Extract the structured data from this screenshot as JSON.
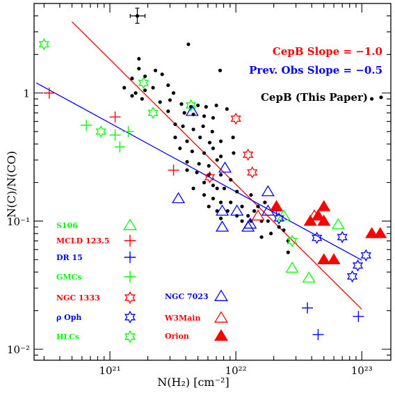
{
  "chart_data": {
    "type": "scatter",
    "title": "",
    "xlabel": "N(H₂) [cm⁻²]",
    "ylabel": "N(C)/N(CO)",
    "xscale": "log",
    "yscale": "log",
    "xlim": [
      2.5e+20,
      1.7e+23
    ],
    "ylim": [
      0.0082,
      5.0
    ],
    "x_tick_labels": [
      "10²¹",
      "10²²",
      "10²³"
    ],
    "y_tick_labels": [
      "10⁻²",
      "10⁻¹",
      "1"
    ],
    "grid": false,
    "annotations": [
      {
        "text": "CepB Slope = −1.0",
        "color": "#ff0000"
      },
      {
        "text": "Prev. Obs Slope = −0.5",
        "color": "#0000ff"
      },
      {
        "text": "CepB (This Paper)",
        "color": "#000000"
      }
    ],
    "fit_lines": [
      {
        "name": "CepB Slope",
        "slope": -1.0,
        "color": "#ff0000",
        "points": [
          [
            5e+20,
            3.6
          ],
          [
            1e+23,
            0.0205
          ]
        ]
      },
      {
        "name": "Prev. Obs Slope",
        "slope": -0.5,
        "color": "#0000ff",
        "points": [
          [
            2.6e+20,
            1.2
          ],
          [
            1e+23,
            0.0495
          ]
        ]
      }
    ],
    "error_bar_point": {
      "x": 1.65e+21,
      "y": 4.0,
      "xerr": [
        1.45e+21,
        1.9e+21
      ],
      "yerr": [
        3.5,
        4.6
      ]
    },
    "series": [
      {
        "name": "CepB (This Paper)",
        "marker": "dot",
        "color": "#000000",
        "points": [
          [
            1.2e+23,
            0.9
          ],
          [
            4.2e+21,
            2.4
          ],
          [
            7.5e+21,
            1.5
          ],
          [
            1.7e+21,
            1.85
          ],
          [
            1.7e+21,
            1.55
          ],
          [
            1.9e+21,
            1.35
          ],
          [
            2.3e+21,
            1.5
          ],
          [
            2.6e+21,
            1.4
          ],
          [
            1.5e+21,
            1.3
          ],
          [
            1.3e+21,
            1.1
          ],
          [
            1.6e+21,
            1.0
          ],
          [
            1.9e+21,
            1.05
          ],
          [
            2.2e+21,
            1.1
          ],
          [
            2.9e+21,
            1.15
          ],
          [
            3.2e+21,
            1.0
          ],
          [
            1.5e+21,
            0.95
          ],
          [
            1.8e+21,
            0.9
          ],
          [
            2.5e+21,
            0.85
          ],
          [
            3e+21,
            0.88
          ],
          [
            3.7e+21,
            0.82
          ],
          [
            4.4e+21,
            0.78
          ],
          [
            5e+21,
            0.8
          ],
          [
            5.8e+21,
            0.78
          ],
          [
            7e+21,
            0.8
          ],
          [
            2.9e+21,
            0.72
          ],
          [
            3.9e+21,
            0.7
          ],
          [
            4.6e+21,
            0.68
          ],
          [
            5.6e+21,
            0.66
          ],
          [
            6.6e+21,
            0.64
          ],
          [
            8.5e+21,
            0.75
          ],
          [
            3.3e+21,
            0.57
          ],
          [
            3.8e+21,
            0.55
          ],
          [
            4.6e+21,
            0.52
          ],
          [
            5.5e+21,
            0.55
          ],
          [
            6.5e+21,
            0.5
          ],
          [
            3.3e+21,
            0.45
          ],
          [
            4.1e+21,
            0.42
          ],
          [
            5.2e+21,
            0.45
          ],
          [
            6.2e+21,
            0.41
          ],
          [
            7.6e+21,
            0.42
          ],
          [
            9.5e+21,
            0.45
          ],
          [
            3.6e+21,
            0.37
          ],
          [
            4.5e+21,
            0.35
          ],
          [
            5.6e+21,
            0.34
          ],
          [
            6.6e+21,
            0.37
          ],
          [
            7.6e+21,
            0.32
          ],
          [
            9.6e+21,
            0.34
          ],
          [
            4.1e+21,
            0.29
          ],
          [
            5.1e+21,
            0.28
          ],
          [
            6.1e+21,
            0.27
          ],
          [
            7.1e+21,
            0.3
          ],
          [
            4.1e+21,
            0.25
          ],
          [
            4.9e+21,
            0.24
          ],
          [
            6.1e+21,
            0.23
          ],
          [
            7.6e+21,
            0.23
          ],
          [
            9.1e+21,
            0.21
          ],
          [
            5.6e+21,
            0.2
          ],
          [
            6.6e+21,
            0.19
          ],
          [
            7.1e+21,
            0.18
          ],
          [
            8.1e+21,
            0.18
          ],
          [
            4.6e+21,
            0.18
          ],
          [
            1.02e+22,
            0.17
          ],
          [
            5.6e+21,
            0.16
          ],
          [
            6.6e+21,
            0.15
          ],
          [
            7.6e+21,
            0.14
          ],
          [
            9.1e+21,
            0.14
          ],
          [
            1.12e+22,
            0.13
          ],
          [
            1.5e+22,
            0.13
          ],
          [
            6.1e+21,
            0.13
          ],
          [
            7.1e+21,
            0.12
          ],
          [
            8.6e+21,
            0.12
          ],
          [
            1.02e+22,
            0.11
          ],
          [
            1.25e+22,
            0.11
          ],
          [
            1.4e+22,
            0.12
          ],
          [
            7.6e+21,
            0.105
          ],
          [
            1.12e+22,
            0.1
          ],
          [
            1.32e+22,
            0.1
          ],
          [
            1.6e+22,
            0.1
          ],
          [
            1.8e+22,
            0.1
          ],
          [
            2.2e+22,
            0.09
          ],
          [
            2.4e+22,
            0.085
          ],
          [
            2.6e+22,
            0.07
          ],
          [
            2.6e+22,
            0.057
          ],
          [
            1.6e+22,
            0.075
          ],
          [
            1.9e+22,
            0.08
          ],
          [
            1.32e+22,
            0.16
          ],
          [
            1.7e+22,
            0.14
          ]
        ]
      },
      {
        "name": "S106",
        "marker": "triangle-open",
        "color": "#00ff00",
        "points": [
          [
            2.8e+22,
            0.043
          ],
          [
            3.8e+22,
            0.036
          ],
          [
            6.5e+22,
            0.094
          ],
          [
            2.4e+22,
            0.11
          ]
        ]
      },
      {
        "name": "MCLD 123.5",
        "marker": "plus",
        "color": "#ff0000",
        "points": [
          [
            3.3e+20,
            1.0
          ],
          [
            1.1e+21,
            0.65
          ],
          [
            3.2e+21,
            0.25
          ]
        ]
      },
      {
        "name": "DR 15",
        "marker": "plus",
        "color": "#0000ff",
        "points": [
          [
            3.7e+22,
            0.021
          ],
          [
            4.5e+22,
            0.013
          ],
          [
            9.4e+22,
            0.018
          ],
          [
            2.1e+22,
            0.12
          ]
        ]
      },
      {
        "name": "GMCs",
        "marker": "plus",
        "color": "#00ff00",
        "points": [
          [
            6.5e+20,
            0.56
          ],
          [
            1.1e+21,
            0.47
          ],
          [
            1.2e+21,
            0.38
          ],
          [
            1.4e+21,
            0.5
          ]
        ]
      },
      {
        "name": "NGC 1333",
        "marker": "star-open",
        "color": "#ff0000",
        "points": [
          [
            1e+22,
            0.63
          ],
          [
            1.25e+22,
            0.33
          ],
          [
            1.35e+22,
            0.24
          ],
          [
            6.2e+21,
            0.22
          ]
        ]
      },
      {
        "name": "ρ Oph",
        "marker": "star-open",
        "color": "#0000ff",
        "points": [
          [
            4.4e+22,
            0.074
          ],
          [
            7e+22,
            0.075
          ],
          [
            8.4e+22,
            0.037
          ],
          [
            9.3e+22,
            0.045
          ],
          [
            1.08e+23,
            0.054
          ],
          [
            2.2e+22,
            0.105
          ]
        ]
      },
      {
        "name": "HLCs",
        "marker": "star-open",
        "color": "#00ff00",
        "points": [
          [
            3e+20,
            2.4
          ],
          [
            8.5e+20,
            0.5
          ],
          [
            1.85e+21,
            1.2
          ],
          [
            2.2e+21,
            0.7
          ],
          [
            4.4e+21,
            0.8
          ],
          [
            2.8e+22,
            0.07
          ]
        ]
      },
      {
        "name": "NGC 7023",
        "marker": "triangle-open",
        "color": "#0000ff",
        "points": [
          [
            4.5e+21,
            0.72
          ],
          [
            3.5e+21,
            0.15
          ],
          [
            8.2e+21,
            0.26
          ],
          [
            7.8e+21,
            0.12
          ],
          [
            7.8e+21,
            0.09
          ],
          [
            1.02e+22,
            0.12
          ],
          [
            1.3e+22,
            0.095
          ],
          [
            1.25e+22,
            0.09
          ],
          [
            1.8e+22,
            0.17
          ],
          [
            1.8e+22,
            0.12
          ]
        ]
      },
      {
        "name": "W3Main",
        "marker": "triangle-open",
        "color": "#ff0000",
        "points": [
          [
            4.2e+22,
            0.11
          ],
          [
            4.5e+22,
            0.11
          ],
          [
            1.5e+22,
            0.11
          ]
        ]
      },
      {
        "name": "Orion",
        "marker": "triangle-filled",
        "color": "#ff0000",
        "points": [
          [
            2.1e+22,
            0.13
          ],
          [
            3.9e+22,
            0.1
          ],
          [
            4.5e+22,
            0.11
          ],
          [
            5e+22,
            0.13
          ],
          [
            5e+22,
            0.1
          ],
          [
            5e+22,
            0.05
          ],
          [
            6e+22,
            0.05
          ],
          [
            1.2e+23,
            0.08
          ],
          [
            1.4e+23,
            0.08
          ]
        ]
      }
    ],
    "legend": [
      {
        "label": "S106",
        "color": "#00ff00",
        "marker": "triangle-open",
        "column": 1
      },
      {
        "label": "MCLD 123.5",
        "color": "#ff0000",
        "marker": "plus",
        "column": 1
      },
      {
        "label": "DR 15",
        "color": "#0000ff",
        "marker": "plus",
        "column": 1
      },
      {
        "label": "GMCs",
        "color": "#00ff00",
        "marker": "plus",
        "column": 1
      },
      {
        "label": "NGC 1333",
        "color": "#ff0000",
        "marker": "star-open",
        "column": 1
      },
      {
        "label": "ρ Oph",
        "color": "#0000ff",
        "marker": "star-open",
        "column": 1
      },
      {
        "label": "HLCs",
        "color": "#00ff00",
        "marker": "star-open",
        "column": 1
      },
      {
        "label": "NGC 7023",
        "color": "#0000ff",
        "marker": "triangle-open",
        "column": 2
      },
      {
        "label": "W3Main",
        "color": "#ff0000",
        "marker": "triangle-open",
        "column": 2
      },
      {
        "label": "Orion",
        "color": "#ff0000",
        "marker": "triangle-filled",
        "column": 2
      }
    ],
    "legend_placement": "bottom-left"
  }
}
